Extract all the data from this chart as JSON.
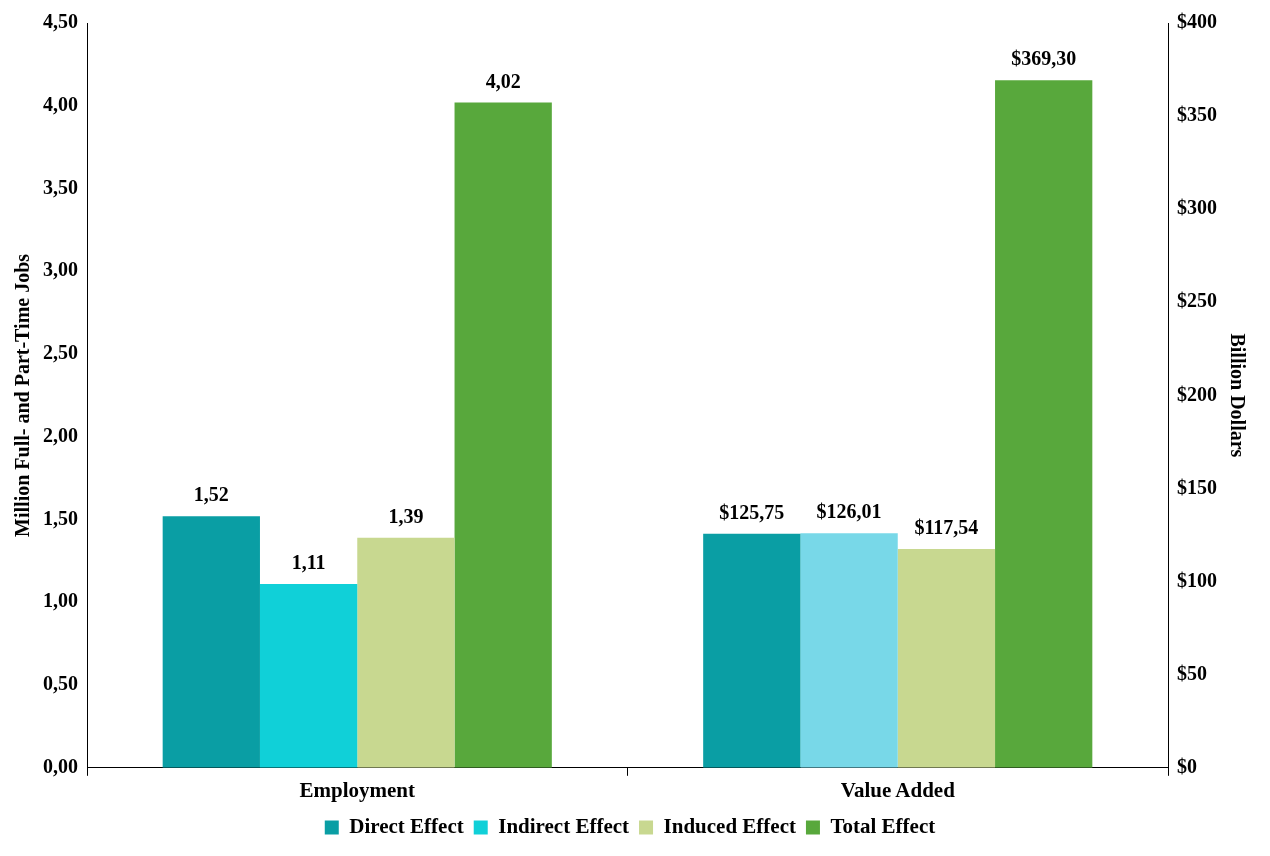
{
  "chart_data": {
    "type": "bar",
    "categories": [
      "Employment",
      "Value Added"
    ],
    "ylabel": "Million Full- and Part-Time Jobs",
    "y2label": "Billion Dollars",
    "ylim": [
      0,
      4.5
    ],
    "yticks": [
      {
        "value": 0,
        "label": "0,00"
      },
      {
        "value": 0.5,
        "label": "0,50"
      },
      {
        "value": 1,
        "label": "1,00"
      },
      {
        "value": 1.5,
        "label": "1,50"
      },
      {
        "value": 2,
        "label": "2,00"
      },
      {
        "value": 2.5,
        "label": "2,50"
      },
      {
        "value": 3,
        "label": "3,00"
      },
      {
        "value": 3.5,
        "label": "3,50"
      },
      {
        "value": 4,
        "label": "4,00"
      },
      {
        "value": 4.5,
        "label": "4,50"
      }
    ],
    "y2lim": [
      0,
      400
    ],
    "y2ticks": [
      {
        "value": 0,
        "label": "$0"
      },
      {
        "value": 50,
        "label": "$50"
      },
      {
        "value": 100,
        "label": "$100"
      },
      {
        "value": 150,
        "label": "$150"
      },
      {
        "value": 200,
        "label": "$200"
      },
      {
        "value": 250,
        "label": "$250"
      },
      {
        "value": 300,
        "label": "$300"
      },
      {
        "value": 350,
        "label": "$350"
      },
      {
        "value": 400,
        "label": "$400"
      }
    ],
    "series": [
      {
        "name": "Direct Effect",
        "color": "#0a9ea4",
        "axis": "y",
        "values": [
          1.52,
          null
        ],
        "value_labels": [
          "1,52",
          null
        ]
      },
      {
        "name": "Indirect Effect",
        "color": "#10d0d8",
        "axis": "y",
        "values": [
          1.11,
          null
        ],
        "value_labels": [
          "1,11",
          null
        ]
      },
      {
        "name": "Induced Effect",
        "color": "#c8d890",
        "axis": "y",
        "values": [
          1.39,
          null
        ],
        "value_labels": [
          "1,39",
          null
        ]
      },
      {
        "name": "Total Effect",
        "color": "#58a83c",
        "axis": "y",
        "values": [
          4.02,
          null
        ],
        "value_labels": [
          "4,02",
          null
        ]
      },
      {
        "color": "#0a9ea4",
        "axis": "y2",
        "values": [
          null,
          125.75
        ],
        "value_labels": [
          null,
          "$125,75"
        ]
      },
      {
        "color": "#78d8e8",
        "axis": "y2",
        "values": [
          null,
          126.01
        ],
        "value_labels": [
          null,
          "$126,01"
        ]
      },
      {
        "color": "#c8d890",
        "axis": "y2",
        "values": [
          null,
          117.54
        ],
        "value_labels": [
          null,
          "$117,54"
        ]
      },
      {
        "color": "#58a83c",
        "axis": "y2",
        "values": [
          null,
          369.3
        ],
        "value_labels": [
          null,
          "$369,30"
        ]
      }
    ],
    "grid": false,
    "legend": "bottom"
  }
}
